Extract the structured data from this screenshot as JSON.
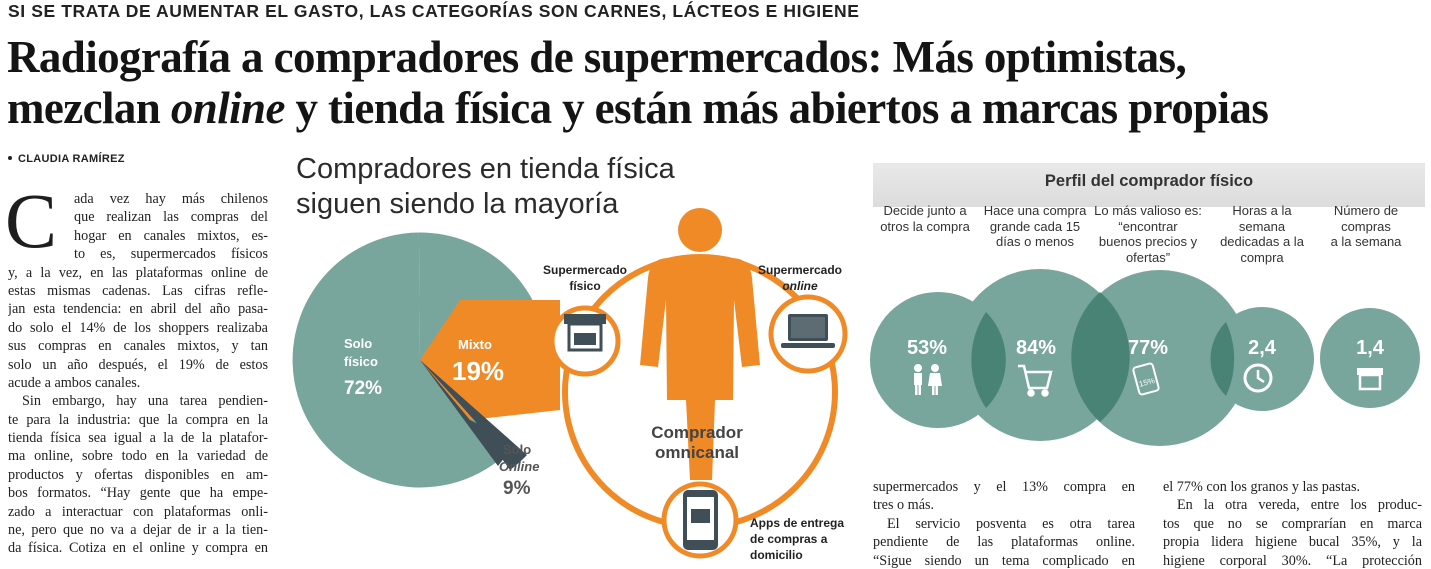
{
  "kicker": "SI SE TRATA DE AUMENTAR EL GASTO, LAS CATEGORÍAS SON CARNES, LÁCTEOS E HIGIENE",
  "headline": {
    "line1": "Radiografía a compradores de supermercados: Más optimistas,",
    "line2_a": "mezclan ",
    "line2_italic": "online",
    "line2_b": " y tienda física y están más abiertos a marcas propias"
  },
  "byline": "CLAUDIA RAMÍREZ",
  "article": {
    "dropcap": "C",
    "col1": [
      "ada vez hay más chilenos",
      "que realizan las compras del",
      "hogar en canales mixtos, es-",
      "to es, supermercados físicos",
      "y, a la vez, en las plataformas online de",
      "estas mismas cadenas. Las cifras refle-",
      "jan esta tendencia: en abril del año pasa-",
      "do solo el 14% de los shoppers realizaba",
      "sus compras en canales mixtos, y tan",
      "solo un año después, el 19% de estos",
      "acude a ambos canales.",
      "Sin embargo, hay una tarea pendien-",
      "te para la industria: que la compra en la",
      "tienda física sea igual a la de la platafor-",
      "ma online, sobre todo en la variedad de",
      "productos y ofertas disponibles en am-",
      "bos formatos. “Hay gente que ha empe-",
      "zado a interactuar con plataformas onli-",
      "ne, pero que no va a dejar de ir a la tien-",
      "da física. Cotiza en el online y compra en"
    ],
    "col2": [
      "supermercados y el 13% compra en",
      "tres o más.",
      "El servicio posventa es otra tarea",
      "pendiente de las plataformas online.",
      "“Sigue siendo un tema complicado en"
    ],
    "col3": [
      "el 77% con los granos y las pastas.",
      "En la otra vereda, entre los produc-",
      "tos que no se comprarían en marca",
      "propia lidera higiene bucal 35%, y la",
      "higiene corporal 30%. “La protección"
    ]
  },
  "infographic": {
    "title_line1": "Compradores en tienda física",
    "title_line2": "siguen siendo la mayoría",
    "pie": {
      "solo_fisico_label1": "Solo",
      "solo_fisico_label2": "físico",
      "solo_fisico_value": "72%",
      "mixto_label": "Mixto",
      "mixto_value": "19%",
      "solo_online_label1": "Solo",
      "solo_online_label2": "Online",
      "solo_online_value": "9%"
    },
    "center_label1": "Comprador",
    "center_label2": "omnicanal",
    "nodes": {
      "fisico_label1": "Supermercado",
      "fisico_label2": "físico",
      "online_label1": "Supermercado",
      "online_label2": "online",
      "apps_label1": "Apps de entrega",
      "apps_label2": "de compras a",
      "apps_label3": "domicilio"
    },
    "colors": {
      "teal": "#78a59c",
      "dark": "#3f4e57",
      "orange": "#ef8a27"
    }
  },
  "perfil": {
    "title": "Perfil del comprador físico",
    "headers": [
      [
        "Decide junto a",
        "otros la compra"
      ],
      [
        "Hace una compra",
        "grande cada 15",
        "días o menos"
      ],
      [
        "Lo más valioso es:",
        "“encontrar",
        "buenos precios y",
        "ofertas”"
      ],
      [
        "Horas a la",
        "semana",
        "dedicadas a la",
        "compra"
      ],
      [
        "Número de",
        "compras",
        "a la semana"
      ]
    ],
    "values": [
      "53%",
      "84%",
      "77%",
      "2,4",
      "1,4"
    ],
    "icons": [
      "people-icon",
      "cart-icon",
      "price-tag-icon",
      "clock-icon",
      "store-icon"
    ],
    "tag_text": "15%"
  }
}
